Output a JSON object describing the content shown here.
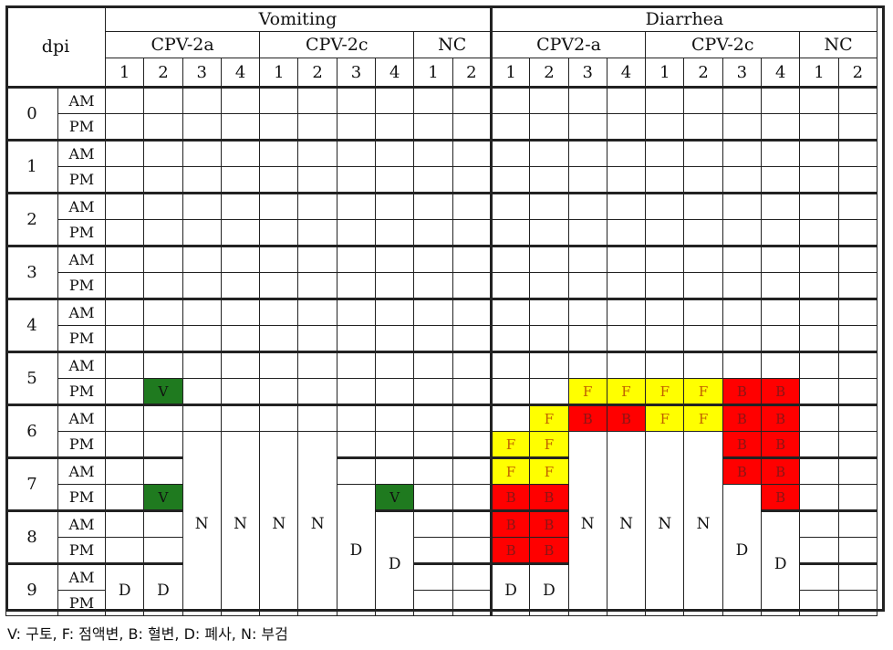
{
  "table": {
    "dpi_label": "dpi",
    "groups": [
      {
        "label": "Vomiting",
        "subgroups": [
          {
            "label": "CPV-2a",
            "cols": [
              "1",
              "2",
              "3",
              "4"
            ]
          },
          {
            "label": "CPV-2c",
            "cols": [
              "1",
              "2",
              "3",
              "4"
            ]
          },
          {
            "label": "NC",
            "cols": [
              "1",
              "2"
            ]
          }
        ]
      },
      {
        "label": "Diarrhea",
        "subgroups": [
          {
            "label": "CPV2-a",
            "cols": [
              "1",
              "2",
              "3",
              "4"
            ]
          },
          {
            "label": "CPV-2c",
            "cols": [
              "1",
              "2",
              "3",
              "4"
            ]
          },
          {
            "label": "NC",
            "cols": [
              "1",
              "2"
            ]
          }
        ]
      }
    ],
    "days": [
      "0",
      "1",
      "2",
      "3",
      "4",
      "5",
      "6",
      "7",
      "8",
      "9"
    ],
    "periods": [
      "AM",
      "PM"
    ],
    "marks": [
      {
        "row": 11,
        "col": 1,
        "text": "V",
        "color": "green"
      },
      {
        "row": 15,
        "col": 1,
        "text": "V",
        "color": "green"
      },
      {
        "row": 15,
        "col": 7,
        "text": "V",
        "color": "green"
      },
      {
        "row": 11,
        "col": 12,
        "text": "F",
        "color": "yellow"
      },
      {
        "row": 11,
        "col": 13,
        "text": "F",
        "color": "yellow"
      },
      {
        "row": 11,
        "col": 14,
        "text": "F",
        "color": "yellow"
      },
      {
        "row": 11,
        "col": 15,
        "text": "F",
        "color": "yellow"
      },
      {
        "row": 11,
        "col": 16,
        "text": "B",
        "color": "red"
      },
      {
        "row": 11,
        "col": 17,
        "text": "B",
        "color": "red"
      },
      {
        "row": 12,
        "col": 11,
        "text": "F",
        "color": "yellow"
      },
      {
        "row": 12,
        "col": 12,
        "text": "B",
        "color": "red"
      },
      {
        "row": 12,
        "col": 13,
        "text": "B",
        "color": "red"
      },
      {
        "row": 12,
        "col": 14,
        "text": "F",
        "color": "yellow"
      },
      {
        "row": 12,
        "col": 15,
        "text": "F",
        "color": "yellow"
      },
      {
        "row": 12,
        "col": 16,
        "text": "B",
        "color": "red"
      },
      {
        "row": 12,
        "col": 17,
        "text": "B",
        "color": "red"
      },
      {
        "row": 13,
        "col": 10,
        "text": "F",
        "color": "yellow"
      },
      {
        "row": 13,
        "col": 11,
        "text": "F",
        "color": "yellow"
      },
      {
        "row": 13,
        "col": 16,
        "text": "B",
        "color": "red"
      },
      {
        "row": 13,
        "col": 17,
        "text": "B",
        "color": "red"
      },
      {
        "row": 14,
        "col": 10,
        "text": "F",
        "color": "yellow"
      },
      {
        "row": 14,
        "col": 11,
        "text": "F",
        "color": "yellow"
      },
      {
        "row": 14,
        "col": 16,
        "text": "B",
        "color": "red"
      },
      {
        "row": 14,
        "col": 17,
        "text": "B",
        "color": "red"
      },
      {
        "row": 15,
        "col": 10,
        "text": "B",
        "color": "red"
      },
      {
        "row": 15,
        "col": 11,
        "text": "B",
        "color": "red"
      },
      {
        "row": 15,
        "col": 17,
        "text": "B",
        "color": "red"
      },
      {
        "row": 16,
        "col": 10,
        "text": "B",
        "color": "red"
      },
      {
        "row": 16,
        "col": 11,
        "text": "B",
        "color": "red"
      },
      {
        "row": 17,
        "col": 10,
        "text": "B",
        "color": "red"
      },
      {
        "row": 17,
        "col": 11,
        "text": "B",
        "color": "red"
      }
    ],
    "spans": [
      {
        "col": 0,
        "from": 18,
        "to": 19,
        "text": "D"
      },
      {
        "col": 1,
        "from": 18,
        "to": 19,
        "text": "D"
      },
      {
        "col": 2,
        "from": 13,
        "to": 19,
        "text": "N"
      },
      {
        "col": 3,
        "from": 13,
        "to": 19,
        "text": "N"
      },
      {
        "col": 4,
        "from": 13,
        "to": 19,
        "text": "N"
      },
      {
        "col": 5,
        "from": 13,
        "to": 19,
        "text": "N"
      },
      {
        "col": 6,
        "from": 15,
        "to": 19,
        "text": "D"
      },
      {
        "col": 7,
        "from": 16,
        "to": 19,
        "text": "D"
      },
      {
        "col": 10,
        "from": 18,
        "to": 19,
        "text": "D"
      },
      {
        "col": 11,
        "from": 18,
        "to": 19,
        "text": "D"
      },
      {
        "col": 12,
        "from": 13,
        "to": 19,
        "text": "N"
      },
      {
        "col": 13,
        "from": 13,
        "to": 19,
        "text": "N"
      },
      {
        "col": 14,
        "from": 13,
        "to": 19,
        "text": "N"
      },
      {
        "col": 15,
        "from": 13,
        "to": 19,
        "text": "N"
      },
      {
        "col": 16,
        "from": 15,
        "to": 19,
        "text": "D"
      },
      {
        "col": 17,
        "from": 16,
        "to": 19,
        "text": "D"
      }
    ]
  },
  "colors": {
    "green": "#1f7a1f",
    "yellow": "#ffff00",
    "red": "#ff0000"
  },
  "legend": "V: 구토, F: 점액변, B: 혈변, D: 폐사, N: 부검"
}
